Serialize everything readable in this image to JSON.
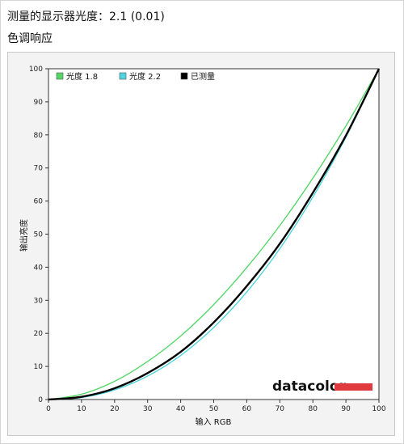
{
  "header": {
    "title": "测量的显示器光度：2.1 (0.01)",
    "subtitle": "色调响应"
  },
  "brand": {
    "name": "datacolor",
    "accent_color": "#e03a3e"
  },
  "chart_data": {
    "type": "line",
    "title": "",
    "xlabel": "输入 RGB",
    "ylabel": "输出亮度",
    "xlim": [
      0,
      100
    ],
    "ylim": [
      0,
      100
    ],
    "xticks": [
      0,
      10,
      20,
      30,
      40,
      50,
      60,
      70,
      80,
      90,
      100
    ],
    "yticks": [
      0,
      10,
      20,
      30,
      40,
      50,
      60,
      70,
      80,
      90,
      100
    ],
    "grid": false,
    "legend_position": "top-left",
    "x": [
      0,
      10,
      20,
      30,
      40,
      50,
      60,
      70,
      80,
      90,
      100
    ],
    "series": [
      {
        "name": "光度 1.8",
        "color": "#55d66a",
        "values": [
          0,
          1.6,
          5.5,
          11.5,
          19.2,
          28.7,
          39.9,
          52.6,
          66.9,
          82.7,
          100
        ]
      },
      {
        "name": "光度 2.2",
        "color": "#4fd4dd",
        "values": [
          0,
          0.6,
          2.9,
          7.1,
          13.3,
          21.8,
          32.5,
          45.6,
          61.2,
          79.3,
          100
        ]
      },
      {
        "name": "已测量",
        "color": "#000000",
        "values": [
          0,
          0.8,
          3.4,
          8.0,
          14.4,
          23.3,
          34.3,
          47.1,
          62.5,
          79.8,
          100
        ]
      }
    ]
  }
}
